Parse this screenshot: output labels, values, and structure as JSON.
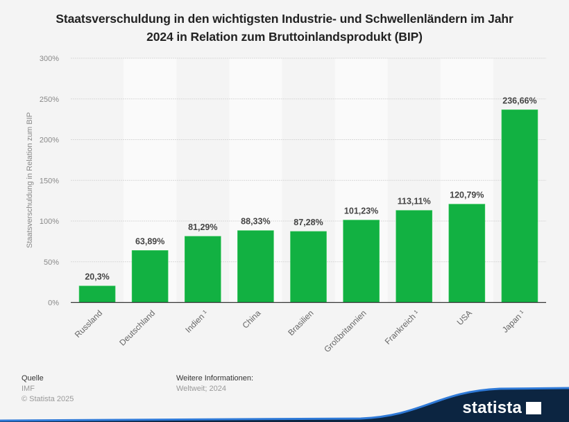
{
  "title": {
    "line1": "Staatsverschuldung in den wichtigsten Industrie- und Schwellenländern im Jahr",
    "line2": "2024 in Relation zum Bruttoinlandsprodukt (BIP)"
  },
  "chart_data": {
    "type": "bar",
    "title": "Staatsverschuldung in den wichtigsten Industrie- und Schwellenländern im Jahr 2024 in Relation zum Bruttoinlandsprodukt (BIP)",
    "xlabel": "",
    "ylabel": "Staatsverschuldung in Relation zum BIP",
    "ylim": [
      0,
      300
    ],
    "yticks": [
      0,
      50,
      100,
      150,
      200,
      250,
      300
    ],
    "ytick_labels": [
      "0%",
      "50%",
      "100%",
      "150%",
      "200%",
      "250%",
      "300%"
    ],
    "grid": true,
    "categories": [
      "Russland",
      "Deutschland",
      "Indien ¹",
      "China",
      "Brasilien",
      "Großbritannien",
      "Frankreich ¹",
      "USA",
      "Japan ¹"
    ],
    "values": [
      20.3,
      63.89,
      81.29,
      88.33,
      87.28,
      101.23,
      113.11,
      120.79,
      236.66
    ],
    "data_labels": [
      "20,3%",
      "63,89%",
      "81,29%",
      "88,33%",
      "87,28%",
      "101,23%",
      "113,11%",
      "120,79%",
      "236,66%"
    ],
    "bar_color": "#12b142"
  },
  "footer": {
    "source_heading": "Quelle",
    "source_value": "IMF",
    "copyright": "© Statista 2025",
    "info_heading": "Weitere Informationen:",
    "info_value": "Weltweit; 2024"
  },
  "brand": {
    "logo_text": "statista",
    "logo_icon": "statista-logo-icon",
    "wave_color": "#0c2541",
    "wave_edge_color": "#2f7ad8"
  }
}
